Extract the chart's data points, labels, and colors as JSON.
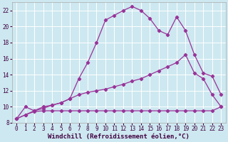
{
  "xlabel": "Windchill (Refroidissement éolien,°C)",
  "background_color": "#cde8f0",
  "grid_color": "#ffffff",
  "line_color": "#993399",
  "xlim": [
    -0.5,
    23.5
  ],
  "ylim": [
    8,
    23
  ],
  "xticks": [
    0,
    1,
    2,
    3,
    4,
    5,
    6,
    7,
    8,
    9,
    10,
    11,
    12,
    13,
    14,
    15,
    16,
    17,
    18,
    19,
    20,
    21,
    22,
    23
  ],
  "yticks": [
    8,
    10,
    12,
    14,
    16,
    18,
    20,
    22
  ],
  "line1_x": [
    0,
    1,
    2,
    3,
    4,
    5,
    6,
    7,
    8,
    9,
    10,
    11,
    12,
    13,
    14,
    15,
    16,
    17,
    18,
    19,
    20,
    21,
    22,
    23
  ],
  "line1_y": [
    8.5,
    10.0,
    9.5,
    9.8,
    10.2,
    10.5,
    11.0,
    13.5,
    15.5,
    18.0,
    20.8,
    21.4,
    22.0,
    22.5,
    22.0,
    21.0,
    19.5,
    19.0,
    21.2,
    19.5,
    16.5,
    14.2,
    13.8,
    11.5
  ],
  "line2_x": [
    0,
    1,
    2,
    3,
    4,
    5,
    6,
    7,
    8,
    9,
    10,
    11,
    12,
    13,
    14,
    15,
    16,
    17,
    18,
    19,
    20,
    21,
    22,
    23
  ],
  "line2_y": [
    8.5,
    9.0,
    9.5,
    10.0,
    10.2,
    10.5,
    11.0,
    11.5,
    11.8,
    12.0,
    12.2,
    12.5,
    12.8,
    13.2,
    13.5,
    14.0,
    14.5,
    15.0,
    15.5,
    16.5,
    14.2,
    13.5,
    11.5,
    10.0
  ],
  "line3_x": [
    0,
    1,
    2,
    3,
    4,
    5,
    6,
    7,
    8,
    9,
    10,
    11,
    12,
    13,
    14,
    15,
    16,
    17,
    18,
    19,
    20,
    21,
    22,
    23
  ],
  "line3_y": [
    8.5,
    9.0,
    9.4,
    9.5,
    9.5,
    9.5,
    9.5,
    9.5,
    9.5,
    9.5,
    9.5,
    9.5,
    9.5,
    9.5,
    9.5,
    9.5,
    9.5,
    9.5,
    9.5,
    9.5,
    9.5,
    9.5,
    9.5,
    10.0
  ],
  "marker": "D",
  "markersize": 2.2,
  "linewidth": 0.9,
  "xlabel_fontsize": 6.5,
  "tick_fontsize": 5.5,
  "tick_color": "#400040"
}
